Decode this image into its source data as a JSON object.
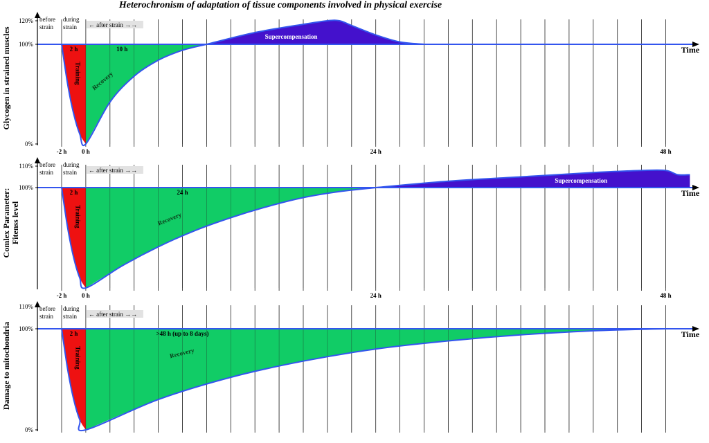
{
  "title": "Heterochronism of adaptation of tissue components involved in physical exercise",
  "colors": {
    "training": "#ee1111",
    "recovery": "#11cc66",
    "supercompensation": "#4411cc",
    "curve": "#3355ee",
    "grid": "#222222",
    "after_strain_bg": "#e2e2e2"
  },
  "common": {
    "time_label": "Time",
    "before_strain": [
      "before",
      "strain"
    ],
    "during_strain": [
      "during",
      "strain"
    ],
    "after_strain": "← after strain →→",
    "training_label": "Training",
    "training_duration": "2 h",
    "recovery_label": "Recovery",
    "supercompensation_label": "Supercompensation"
  },
  "chart_data": [
    {
      "type": "area",
      "ylabel": [
        "Glycogen in strained muscles"
      ],
      "yticks": [
        "120%",
        "100%",
        "0%"
      ],
      "xticks": [
        "-2 h",
        "0 h",
        "24 h",
        "48 h"
      ],
      "x_unit": "h",
      "x_range": [
        -4,
        50
      ],
      "recovery_duration_label": "10 h",
      "recovery_end_h": 10,
      "curve": {
        "x": [
          -2,
          -1.5,
          -1,
          -0.5,
          0,
          2,
          4,
          6,
          8,
          10
        ],
        "y": [
          100,
          60,
          30,
          10,
          0,
          42,
          68,
          84,
          94,
          100
        ]
      },
      "supercompensation": {
        "x": [
          10,
          14,
          18,
          20,
          21,
          22,
          24,
          26,
          28
        ],
        "y": [
          100,
          110,
          117,
          120,
          120,
          116,
          108,
          102,
          100
        ]
      },
      "series": [
        {
          "name": "Training",
          "x_start": -2,
          "x_end": 0
        },
        {
          "name": "Recovery",
          "x_start": 0,
          "x_end": 10
        },
        {
          "name": "Supercompensation",
          "x_start": 10,
          "x_end": 28
        }
      ]
    },
    {
      "type": "area",
      "ylabel": [
        "Comlex Parameter:",
        "Fitenss level"
      ],
      "yticks": [
        "110%",
        "100%"
      ],
      "xticks": [
        "-2 h",
        "0 h",
        "24 h",
        "48 h"
      ],
      "x_unit": "h",
      "x_range": [
        -4,
        50
      ],
      "recovery_duration_label": "24 h",
      "recovery_end_h": 24,
      "curve": {
        "x": [
          -2,
          -1.5,
          -1,
          -0.5,
          0,
          3,
          6,
          9,
          12,
          15,
          18,
          21,
          24
        ],
        "y": [
          100,
          60,
          30,
          10,
          0,
          22,
          41,
          57,
          70,
          81,
          90,
          96,
          100
        ]
      },
      "supercompensation": {
        "x": [
          24,
          30,
          36,
          42,
          46,
          48,
          49,
          50
        ],
        "y": [
          100,
          103,
          105,
          107,
          108,
          108,
          106,
          106
        ]
      },
      "series": [
        {
          "name": "Training",
          "x_start": -2,
          "x_end": 0
        },
        {
          "name": "Recovery",
          "x_start": 0,
          "x_end": 24
        },
        {
          "name": "Supercompensation",
          "x_start": 24,
          "x_end": 50
        }
      ]
    },
    {
      "type": "area",
      "ylabel": [
        "Damage to mitochondria"
      ],
      "yticks": [
        "110%",
        "100%",
        "0%"
      ],
      "xticks": [],
      "x_unit": "h",
      "x_range": [
        -4,
        50
      ],
      "recovery_duration_label": ">48 h (up to 8 days)",
      "recovery_end_h": 48,
      "curve": {
        "x": [
          -2,
          -1.5,
          -1,
          -0.5,
          0,
          6,
          12,
          18,
          24,
          30,
          36,
          42,
          46,
          48
        ],
        "y": [
          100,
          60,
          30,
          10,
          0,
          30,
          52,
          68,
          80,
          88,
          94,
          98,
          99.5,
          100
        ]
      },
      "supercompensation": null,
      "series": [
        {
          "name": "Training",
          "x_start": -2,
          "x_end": 0
        },
        {
          "name": "Recovery",
          "x_start": 0,
          "x_end": 48
        }
      ]
    }
  ]
}
